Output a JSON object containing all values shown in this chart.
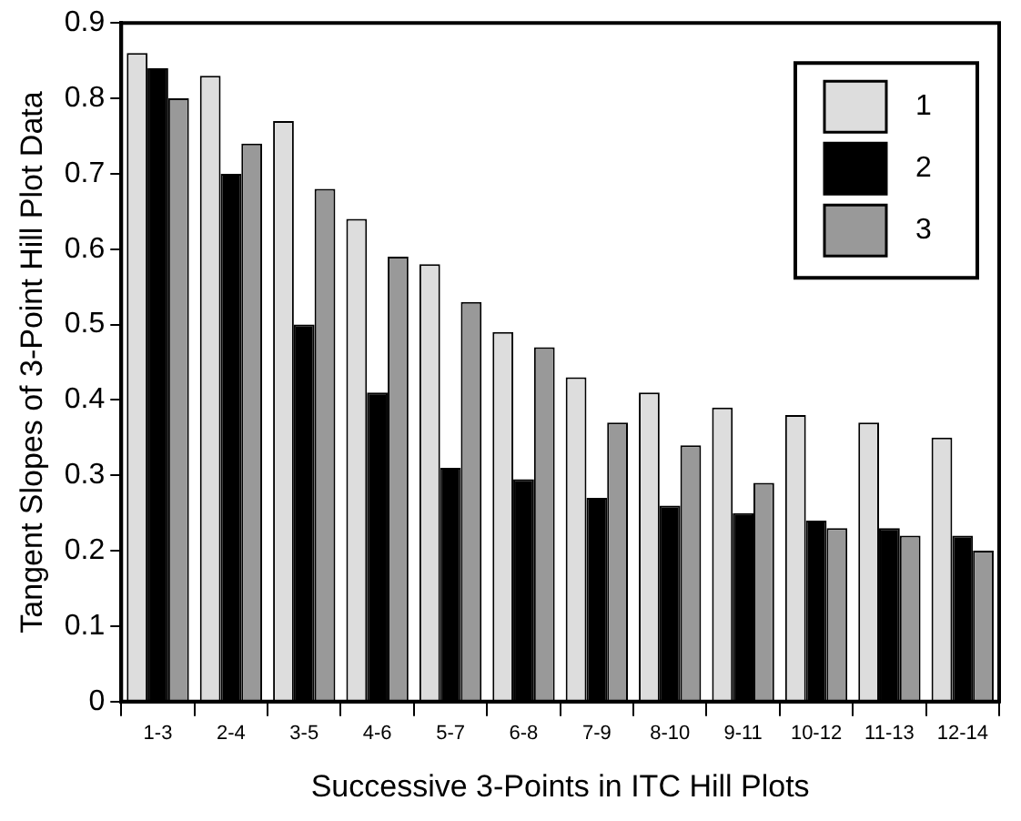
{
  "chart_data": {
    "type": "bar",
    "xlabel": "Successive 3-Points in ITC Hill Plots",
    "ylabel": "Tangent Slopes of 3-Point Hill Plot Data",
    "categories": [
      "1-3",
      "2-4",
      "3-5",
      "4-6",
      "5-7",
      "6-8",
      "7-9",
      "8-10",
      "9-11",
      "10-12",
      "11-13",
      "12-14"
    ],
    "series": [
      {
        "name": "1",
        "color": "#dddddd",
        "values": [
          0.86,
          0.83,
          0.77,
          0.64,
          0.58,
          0.49,
          0.43,
          0.41,
          0.39,
          0.38,
          0.37,
          0.35
        ]
      },
      {
        "name": "2",
        "color": "#000000",
        "values": [
          0.84,
          0.7,
          0.5,
          0.41,
          0.31,
          0.295,
          0.27,
          0.26,
          0.25,
          0.24,
          0.23,
          0.22
        ]
      },
      {
        "name": "3",
        "color": "#999999",
        "values": [
          0.8,
          0.74,
          0.68,
          0.59,
          0.53,
          0.47,
          0.37,
          0.34,
          0.29,
          0.23,
          0.22,
          0.2
        ]
      }
    ],
    "ylim": [
      0,
      0.9
    ],
    "yticks": [
      0,
      0.1,
      0.2,
      0.3,
      0.4,
      0.5,
      0.6,
      0.7,
      0.8,
      0.9
    ],
    "grid": false,
    "legend": "top right"
  }
}
